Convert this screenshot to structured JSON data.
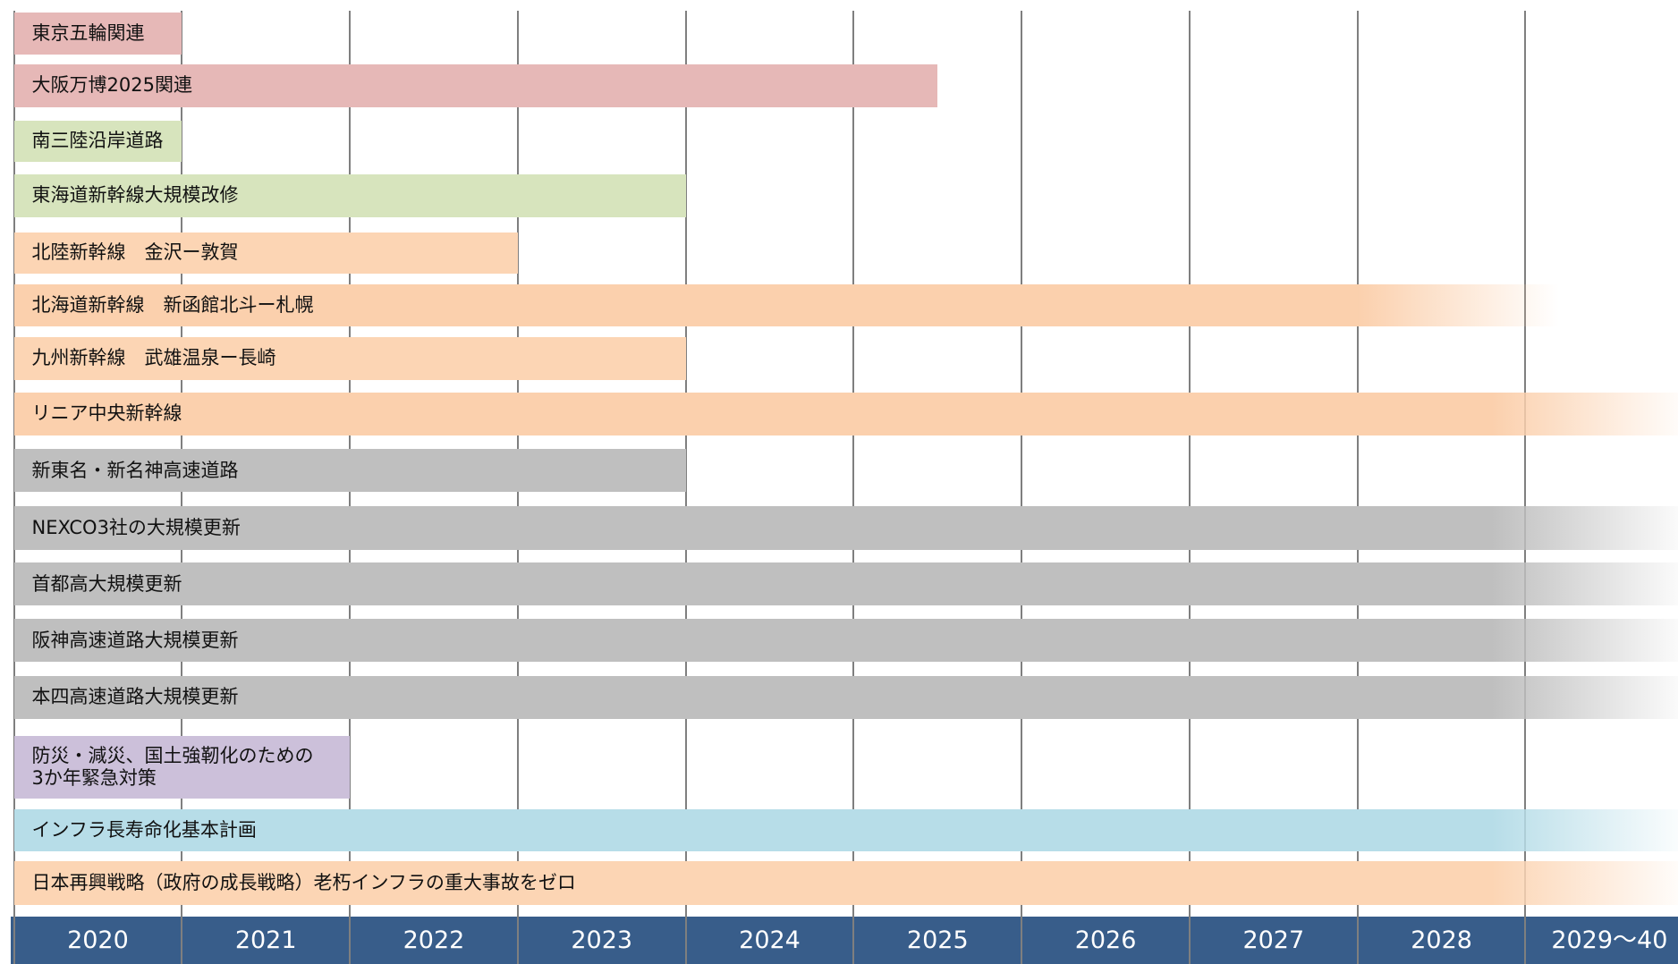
{
  "chart_data": {
    "type": "gantt",
    "xlim": [
      2020,
      2030
    ],
    "xticks": [
      2020,
      2021,
      2022,
      2023,
      2024,
      2025,
      2026,
      2027,
      2028,
      {
        "value": 2029,
        "label": "2029〜40"
      }
    ],
    "grid": true,
    "axis_color": "#385d8a",
    "series": [
      {
        "name": "東京五輪関連",
        "color": "#e6b8b7",
        "values": [
          2021
        ],
        "fade": false
      },
      {
        "name": "大阪万博2025関連",
        "color": "#e6b8b7",
        "values": [
          2025.5
        ],
        "fade": false
      },
      {
        "name": "南三陸沿岸道路",
        "color": "#d7e4bd",
        "values": [
          2021
        ],
        "fade": false
      },
      {
        "name": "東海道新幹線大規模改修",
        "color": "#d7e4bd",
        "values": [
          2024
        ],
        "fade": false
      },
      {
        "name": "北陸新幹線　金沢ー敦賀",
        "color": "#fcd5b4",
        "values": [
          2023
        ],
        "fade": false
      },
      {
        "name": "北海道新幹線　新函館北斗ー札幌",
        "color": "#fbd0ad",
        "values": [
          2029.2
        ],
        "fade": true
      },
      {
        "name": "九州新幹線　武雄温泉ー長崎",
        "color": "#fcd5b4",
        "values": [
          2024
        ],
        "fade": false
      },
      {
        "name": "リニア中央新幹線",
        "color": "#fbd0ad",
        "values": [
          2030
        ],
        "fade": true
      },
      {
        "name": "新東名・新名神高速道路",
        "color": "#bfbfbf",
        "values": [
          2024
        ],
        "fade": false
      },
      {
        "name": "NEXCO3社の大規模更新",
        "color": "#bfbfbf",
        "values": [
          2030
        ],
        "fade": true
      },
      {
        "name": "首都高大規模更新",
        "color": "#bfbfbf",
        "values": [
          2030
        ],
        "fade": true
      },
      {
        "name": "阪神高速道路大規模更新",
        "color": "#bfbfbf",
        "values": [
          2030
        ],
        "fade": true
      },
      {
        "name": "本四高速道路大規模更新",
        "color": "#bfbfbf",
        "values": [
          2030
        ],
        "fade": true
      },
      {
        "name": "防災・減災、国土強靭化のための\n3か年緊急対策",
        "color": "#ccc0da",
        "values": [
          2022
        ],
        "fade": false
      },
      {
        "name": "インフラ長寿命化基本計画",
        "color": "#b7dde8",
        "values": [
          2030
        ],
        "fade": true
      },
      {
        "name": "日本再興戦略（政府の成長戦略）老朽インフラの重大事故をゼロ",
        "color": "#fcd5b4",
        "values": [
          2030
        ],
        "fade": true
      }
    ]
  }
}
